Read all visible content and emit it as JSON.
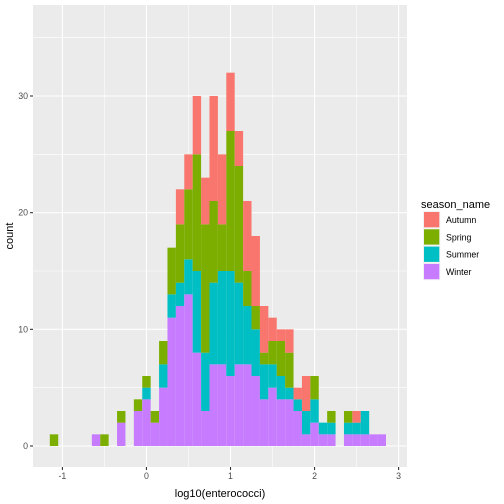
{
  "chart_data": {
    "type": "bar",
    "stacked": true,
    "xlabel": "log10(enterococci)",
    "ylabel": "count",
    "x_tick_labels": [
      "-1",
      "0",
      "1",
      "2",
      "3"
    ],
    "x_ticks": [
      -1,
      0,
      1,
      2,
      3
    ],
    "y_tick_labels": [
      "0",
      "10",
      "20",
      "30"
    ],
    "y_ticks": [
      0,
      10,
      20,
      30
    ],
    "xlim": [
      -1.35,
      3.1
    ],
    "ylim": [
      -1.8,
      37.8
    ],
    "grid": true,
    "legend_position": "right",
    "legend_title": "season_name",
    "bin_width": 0.1,
    "bins": [
      -1.1,
      -1.0,
      -0.9,
      -0.8,
      -0.7,
      -0.6,
      -0.5,
      -0.4,
      -0.3,
      -0.2,
      -0.1,
      0.0,
      0.1,
      0.2,
      0.3,
      0.4,
      0.5,
      0.6,
      0.7,
      0.8,
      0.9,
      1.0,
      1.1,
      1.2,
      1.3,
      1.4,
      1.5,
      1.6,
      1.7,
      1.8,
      1.9,
      2.0,
      2.1,
      2.2,
      2.3,
      2.4,
      2.5,
      2.6,
      2.7,
      2.8,
      2.9
    ],
    "series": [
      {
        "name": "Autumn",
        "color": "#F8766D",
        "values": [
          0,
          0,
          0,
          0,
          0,
          0,
          0,
          0,
          0,
          0,
          0,
          0,
          0,
          0,
          0,
          3,
          3,
          5,
          4,
          9,
          6,
          5,
          3,
          6,
          6,
          4,
          2,
          1,
          2,
          1,
          3,
          0,
          0,
          0,
          0,
          0,
          1,
          0,
          0,
          0,
          0
        ]
      },
      {
        "name": "Spring",
        "color": "#7CAE00",
        "values": [
          1,
          0,
          0,
          0,
          0,
          0,
          1,
          0,
          1,
          0,
          1,
          1,
          1,
          2,
          4,
          5,
          6,
          10,
          11,
          7,
          4,
          12,
          10,
          3,
          2,
          1,
          2,
          3,
          3,
          0,
          0,
          2,
          0,
          1,
          0,
          1,
          0,
          0,
          0,
          0,
          0
        ]
      },
      {
        "name": "Summer",
        "color": "#00BFC4",
        "values": [
          0,
          0,
          0,
          0,
          0,
          0,
          0,
          0,
          0,
          0,
          0,
          1,
          0,
          2,
          2,
          2,
          3,
          7,
          5,
          7,
          8,
          9,
          7,
          5,
          4,
          3,
          2,
          2,
          1,
          1,
          2,
          2,
          1,
          1,
          0,
          1,
          1,
          2,
          0,
          0,
          0
        ]
      },
      {
        "name": "Winter",
        "color": "#C77CFF",
        "values": [
          0,
          0,
          0,
          0,
          0,
          1,
          0,
          0,
          2,
          0,
          3,
          4,
          2,
          5,
          11,
          12,
          13,
          8,
          3,
          7,
          7,
          6,
          7,
          7,
          6,
          4,
          5,
          4,
          4,
          3,
          1,
          2,
          1,
          1,
          0,
          1,
          1,
          1,
          1,
          1,
          0
        ]
      }
    ]
  }
}
